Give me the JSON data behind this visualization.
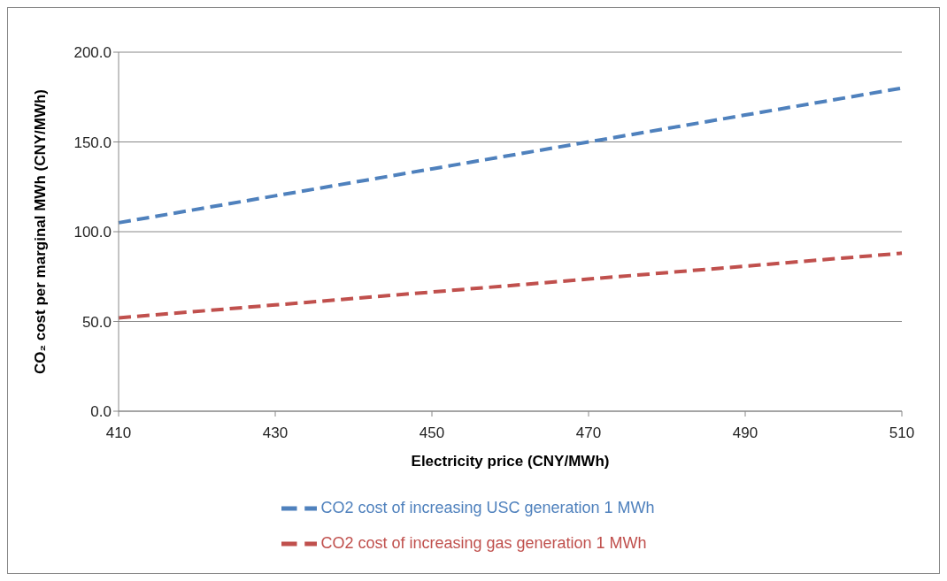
{
  "chart_data": {
    "type": "line",
    "xlabel": "Electricity price (CNY/MWh)",
    "ylabel": "CO₂ cost per marginal MWh (CNY/MWh)",
    "categories": [
      "410",
      "430",
      "450",
      "470",
      "490",
      "510"
    ],
    "series": [
      {
        "name": "CO2 cost of increasing USC generation 1 MWh",
        "color": "#4f81bd",
        "values": [
          105,
          120,
          135,
          150,
          165,
          180
        ]
      },
      {
        "name": "CO2 cost of increasing gas generation 1 MWh",
        "color": "#c0504d",
        "values": [
          52,
          59.2,
          66.4,
          73.6,
          80.8,
          88
        ]
      }
    ],
    "ylim": [
      0,
      200
    ],
    "yticks": [
      {
        "value": 0,
        "label": "0.0"
      },
      {
        "value": 50,
        "label": "50.0"
      },
      {
        "value": 100,
        "label": "100.0"
      },
      {
        "value": 150,
        "label": "150.0"
      },
      {
        "value": 200,
        "label": "200.0"
      }
    ],
    "grid": "y",
    "legend": "bottom",
    "line_style": "dashed",
    "marker": "none"
  }
}
